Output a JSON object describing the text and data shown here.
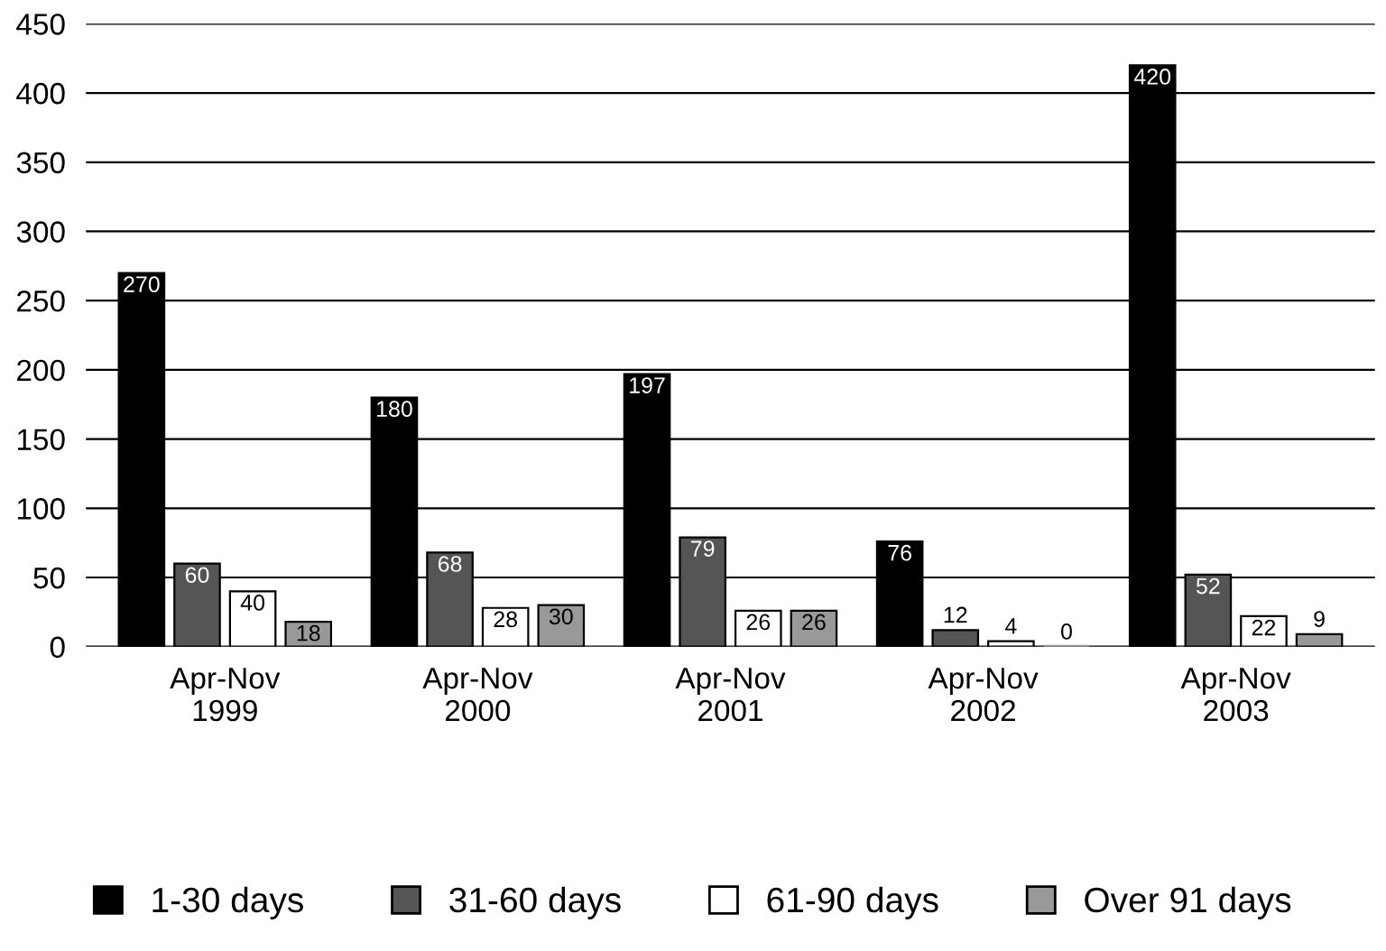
{
  "chart_data": {
    "type": "bar",
    "categories": [
      "Apr-Nov\n1999",
      "Apr-Nov\n2000",
      "Apr-Nov\n2001",
      "Apr-Nov\n2002",
      "Apr-Nov\n2003"
    ],
    "series": [
      {
        "name": "1-30 days",
        "color": "#000000",
        "values": [
          270,
          180,
          197,
          76,
          420
        ]
      },
      {
        "name": "31-60 days",
        "color": "#555555",
        "values": [
          60,
          68,
          79,
          12,
          52
        ]
      },
      {
        "name": "61-90 days",
        "color": "#ffffff",
        "values": [
          40,
          28,
          26,
          4,
          22
        ]
      },
      {
        "name": "Over 91 days",
        "color": "#999999",
        "values": [
          18,
          30,
          26,
          0,
          9
        ]
      }
    ],
    "ylim": [
      0,
      450
    ],
    "yticks": [
      0,
      50,
      100,
      150,
      200,
      250,
      300,
      350,
      400,
      450
    ],
    "grid": "y",
    "legend": "bottom",
    "data_labels": true
  }
}
